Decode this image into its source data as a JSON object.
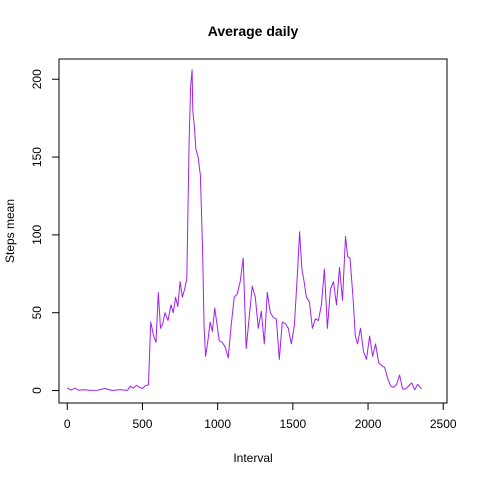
{
  "chart_data": {
    "type": "line",
    "title": "Average daily",
    "xlabel": "Interval",
    "ylabel": "Steps mean",
    "xlim": [
      -55,
      2525
    ],
    "ylim": [
      -8,
      213
    ],
    "x_ticks": [
      0,
      500,
      1000,
      1500,
      2000,
      2500
    ],
    "y_ticks": [
      0,
      50,
      100,
      150,
      200
    ],
    "line_color": "#A020F0",
    "grid": false,
    "series": [
      {
        "x": [
          0,
          25,
          50,
          75,
          100,
          125,
          150,
          200,
          250,
          300,
          350,
          400,
          420,
          440,
          460,
          480,
          500,
          520,
          540,
          555,
          575,
          590,
          605,
          620,
          635,
          650,
          670,
          690,
          705,
          720,
          735,
          750,
          765,
          780,
          795,
          810,
          820,
          830,
          835,
          845,
          855,
          870,
          885,
          900,
          910,
          920,
          935,
          950,
          965,
          980,
          995,
          1010,
          1030,
          1050,
          1070,
          1090,
          1110,
          1130,
          1150,
          1170,
          1190,
          1210,
          1230,
          1250,
          1270,
          1290,
          1310,
          1330,
          1350,
          1370,
          1390,
          1410,
          1430,
          1450,
          1470,
          1490,
          1510,
          1530,
          1545,
          1560,
          1575,
          1590,
          1610,
          1630,
          1650,
          1670,
          1690,
          1710,
          1730,
          1750,
          1770,
          1790,
          1810,
          1830,
          1850,
          1865,
          1880,
          1900,
          1915,
          1930,
          1950,
          1970,
          1990,
          2010,
          2030,
          2050,
          2070,
          2090,
          2110,
          2130,
          2150,
          2170,
          2190,
          2210,
          2230,
          2250,
          2270,
          2290,
          2310,
          2330,
          2355
        ],
        "y": [
          1.7,
          0.3,
          1.5,
          0.2,
          0.4,
          0.5,
          0.1,
          0.2,
          1.3,
          0,
          0.6,
          0.1,
          2.8,
          1.5,
          3.4,
          2.1,
          1.4,
          3.2,
          3.6,
          44,
          35,
          31,
          63,
          40,
          43,
          50,
          45,
          55,
          50,
          60,
          54,
          70,
          60,
          65,
          72,
          160,
          195,
          206,
          180,
          170,
          155,
          150,
          138,
          90,
          40,
          22,
          32,
          44,
          38,
          53,
          43,
          32,
          31,
          28,
          21,
          42,
          60,
          62,
          70,
          85,
          27,
          47,
          67,
          60,
          40,
          51,
          30,
          63,
          50,
          47,
          46,
          20,
          44,
          43,
          40,
          30,
          42,
          75,
          102,
          78,
          70,
          60,
          57,
          40,
          46,
          45,
          55,
          78,
          40,
          65,
          70,
          55,
          79,
          58,
          99,
          86,
          85,
          60,
          35,
          30,
          40,
          25,
          20,
          35,
          22,
          30,
          18,
          16,
          15,
          8,
          3,
          2,
          4,
          10,
          1,
          1,
          3,
          5,
          0.5,
          4,
          1.1
        ]
      }
    ]
  }
}
